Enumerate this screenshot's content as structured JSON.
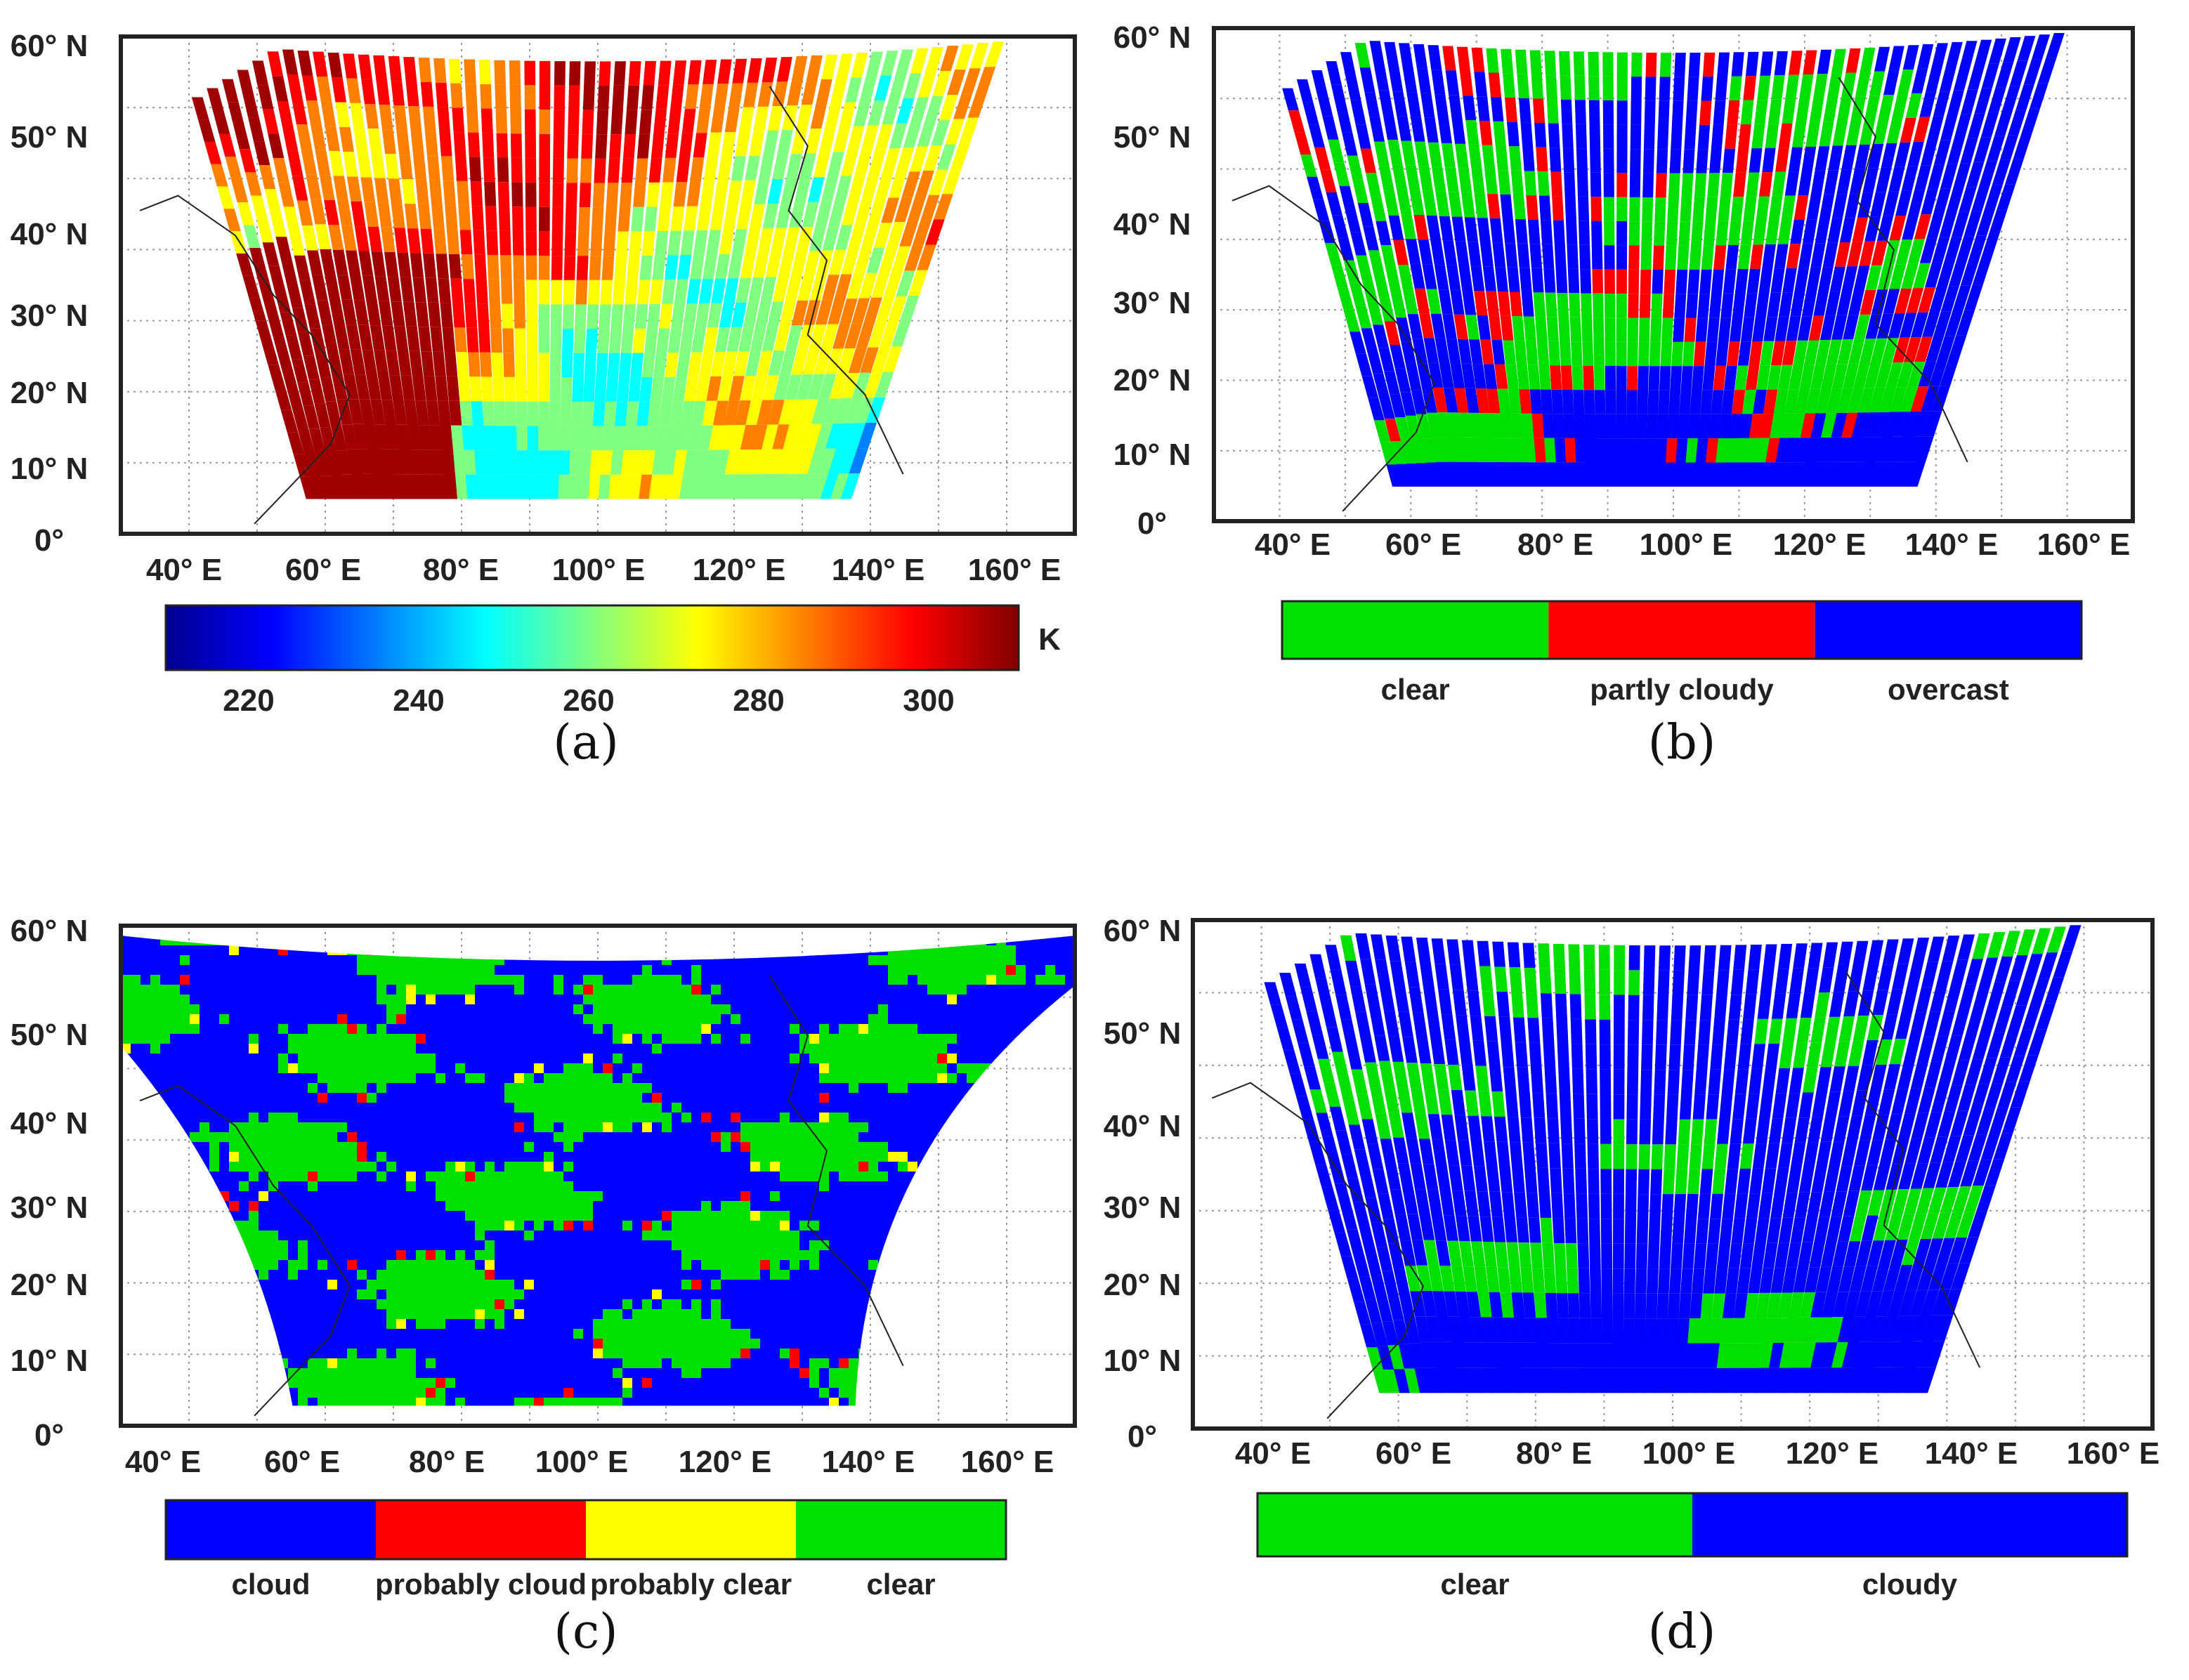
{
  "panels": [
    {
      "id": "a",
      "caption": "(a)",
      "lat_labels": [
        "60° N",
        "50° N",
        "40° N",
        "30° N",
        "20° N",
        "10° N",
        "0°"
      ],
      "lon_labels": [
        "40° E",
        "60° E",
        "80° E",
        "100° E",
        "120° E",
        "140° E",
        "160° E"
      ],
      "colorbar": {
        "type": "continuous",
        "unit": "K",
        "ticks": [
          "220",
          "240",
          "260",
          "280",
          "300"
        ],
        "colors": [
          "#00008f",
          "#0000ff",
          "#0080ff",
          "#00ffff",
          "#80ff80",
          "#ffff00",
          "#ff8000",
          "#ff0000",
          "#800000"
        ]
      }
    },
    {
      "id": "b",
      "caption": "(b)",
      "lat_labels": [
        "60° N",
        "50° N",
        "40° N",
        "30° N",
        "20° N",
        "10° N",
        "0°"
      ],
      "lon_labels": [
        "40° E",
        "60° E",
        "80° E",
        "100° E",
        "120° E",
        "140° E",
        "160° E"
      ],
      "colorbar": {
        "type": "categorical",
        "categories": [
          {
            "label": "clear",
            "color": "#00e000"
          },
          {
            "label": "partly cloudy",
            "color": "#ff0000"
          },
          {
            "label": "overcast",
            "color": "#0000ff"
          }
        ]
      }
    },
    {
      "id": "c",
      "caption": "(c)",
      "lat_labels": [
        "60° N",
        "50° N",
        "40° N",
        "30° N",
        "20° N",
        "10° N",
        "0°"
      ],
      "lon_labels": [
        "40° E",
        "60° E",
        "80° E",
        "100° E",
        "120° E",
        "140° E",
        "160° E"
      ],
      "colorbar": {
        "type": "categorical",
        "categories": [
          {
            "label": "cloud",
            "color": "#0000ff"
          },
          {
            "label": "probably cloud",
            "color": "#ff0000"
          },
          {
            "label": "probably clear",
            "color": "#ffff00"
          },
          {
            "label": "clear",
            "color": "#00e000"
          }
        ]
      }
    },
    {
      "id": "d",
      "caption": "(d)",
      "lat_labels": [
        "60° N",
        "50° N",
        "40° N",
        "30° N",
        "20° N",
        "10° N",
        "0°"
      ],
      "lon_labels": [
        "40° E",
        "60° E",
        "80° E",
        "100° E",
        "120° E",
        "140° E",
        "160° E"
      ],
      "colorbar": {
        "type": "categorical",
        "categories": [
          {
            "label": "clear",
            "color": "#00e000"
          },
          {
            "label": "cloudy",
            "color": "#0000ff"
          }
        ]
      }
    }
  ]
}
